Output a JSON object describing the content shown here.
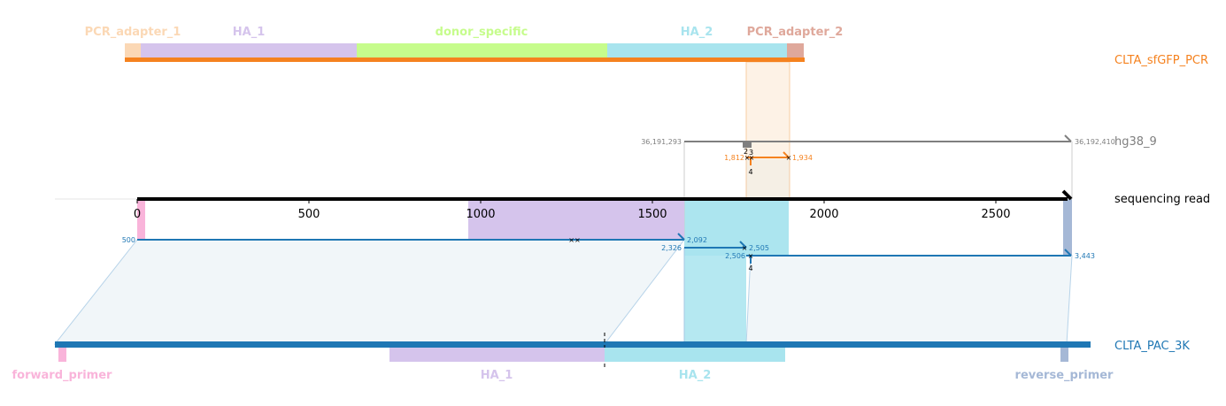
{
  "colors": {
    "pcr_template": "#f5821f",
    "genome": "#7f7f7f",
    "read": "#000000",
    "amplicon": "#1f77b4",
    "ha1": "#d5c4ec",
    "ha2": "#a8e4ee",
    "donor_specific": "#c6fc8c",
    "pcr_adapter_1": "#fbd8b5",
    "pcr_adapter_2": "#dfa89b",
    "forward_primer": "#f9b4da",
    "reverse_primer": "#a5b8d6"
  },
  "targets": {
    "pcr_template": "CLTA_sfGFP_PCR",
    "genome": "hg38_9",
    "read": "sequencing read",
    "amplicon": "CLTA_PAC_3K"
  },
  "pcr_features": {
    "pcr_adapter_1": "PCR_adapter_1",
    "ha_1": "HA_1",
    "donor_specific": "donor_specific",
    "ha_2": "HA_2",
    "pcr_adapter_2": "PCR_adapter_2"
  },
  "amplicon_features": {
    "forward_primer": "forward_primer",
    "ha_1": "HA_1",
    "ha_2": "HA_2",
    "reverse_primer": "reverse_primer"
  },
  "read_axis": {
    "ticks": [
      "0",
      "500",
      "1000",
      "1500",
      "2000",
      "2500"
    ]
  },
  "genome_labels": {
    "start": "36,191,293",
    "end": "36,192,410"
  },
  "alignment_labels": {
    "pcr_start": "1,812",
    "pcr_end": "1,934",
    "pcr_small_a": "2",
    "pcr_small_b": "3",
    "pcr_count": "4",
    "amp1_start": "500",
    "amp1_end": "2,092",
    "amp2_start": "2,326",
    "amp2_end": "2,505",
    "amp3_start": "2,506",
    "amp3_end": "3,443",
    "amp_count": "4"
  }
}
